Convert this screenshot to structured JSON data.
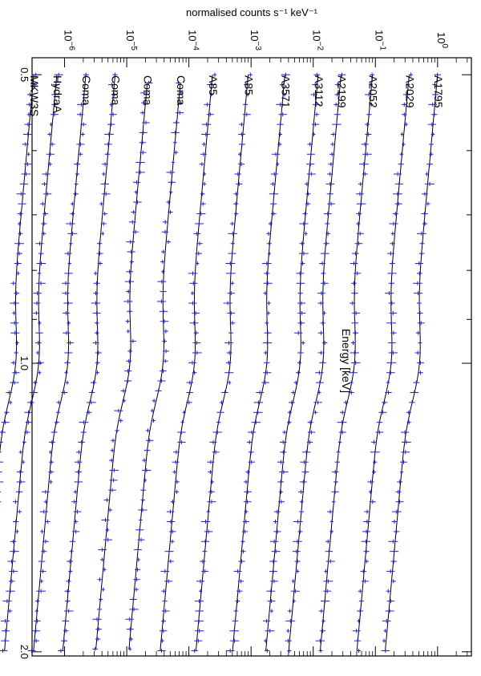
{
  "chart_data": {
    "type": "line",
    "orientation": "rotated-90-clockwise",
    "xlabel": "Energy [keV]",
    "ylabel": "normalised counts s⁻¹ keV⁻¹",
    "x_scale": "log",
    "y_scale": "log",
    "xlim": [
      0.48,
      2.02
    ],
    "ylim": [
      3e-07,
      3.5
    ],
    "x_ticks": [
      {
        "value": 0.5,
        "label": "0.5"
      },
      {
        "value": 1.0,
        "label": "1.0"
      },
      {
        "value": 2.0,
        "label": "2.0"
      }
    ],
    "x_minor_ticks": [
      0.6,
      0.7,
      0.8,
      0.9
    ],
    "y_ticks": [
      {
        "value": 1.0,
        "base": "10",
        "exp": "0"
      },
      {
        "value": 0.1,
        "base": "10",
        "exp": "−1"
      },
      {
        "value": 0.01,
        "base": "10",
        "exp": "−2"
      },
      {
        "value": 0.001,
        "base": "10",
        "exp": "−3"
      },
      {
        "value": 0.0001,
        "base": "10",
        "exp": "−4"
      },
      {
        "value": 1e-05,
        "base": "10",
        "exp": "−5"
      },
      {
        "value": 1e-06,
        "base": "10",
        "exp": "−6"
      }
    ],
    "grid": false,
    "colors": {
      "model": "#000000",
      "data": "#1a1aff"
    },
    "series": [
      {
        "name": "A1795",
        "start_x": 0.5,
        "offset": 1.0
      },
      {
        "name": "A2029",
        "start_x": 0.5,
        "offset": 0.35
      },
      {
        "name": "A2052",
        "start_x": 0.5,
        "offset": 0.09
      },
      {
        "name": "A2199",
        "start_x": 0.5,
        "offset": 0.028
      },
      {
        "name": "A3112",
        "start_x": 0.5,
        "offset": 0.012
      },
      {
        "name": "A3571",
        "start_x": 0.5,
        "offset": 0.0035
      },
      {
        "name": "A85",
        "start_x": 0.5,
        "offset": 0.0009
      },
      {
        "name": "A85",
        "start_x": 0.5,
        "offset": 0.00024
      },
      {
        "name": "Coma",
        "start_x": 0.51,
        "offset": 7.5e-05
      },
      {
        "name": "Coma",
        "start_x": 0.51,
        "offset": 2.2e-05
      },
      {
        "name": "Coma",
        "start_x": 0.5,
        "offset": 6.5e-06
      },
      {
        "name": "Coma",
        "start_x": 0.5,
        "offset": 2.2e-06
      },
      {
        "name": "HydraA",
        "start_x": 0.5,
        "offset": 7.5e-07
      },
      {
        "name": "MKW3S",
        "start_x": 0.5,
        "offset": 3.2e-07
      }
    ]
  }
}
